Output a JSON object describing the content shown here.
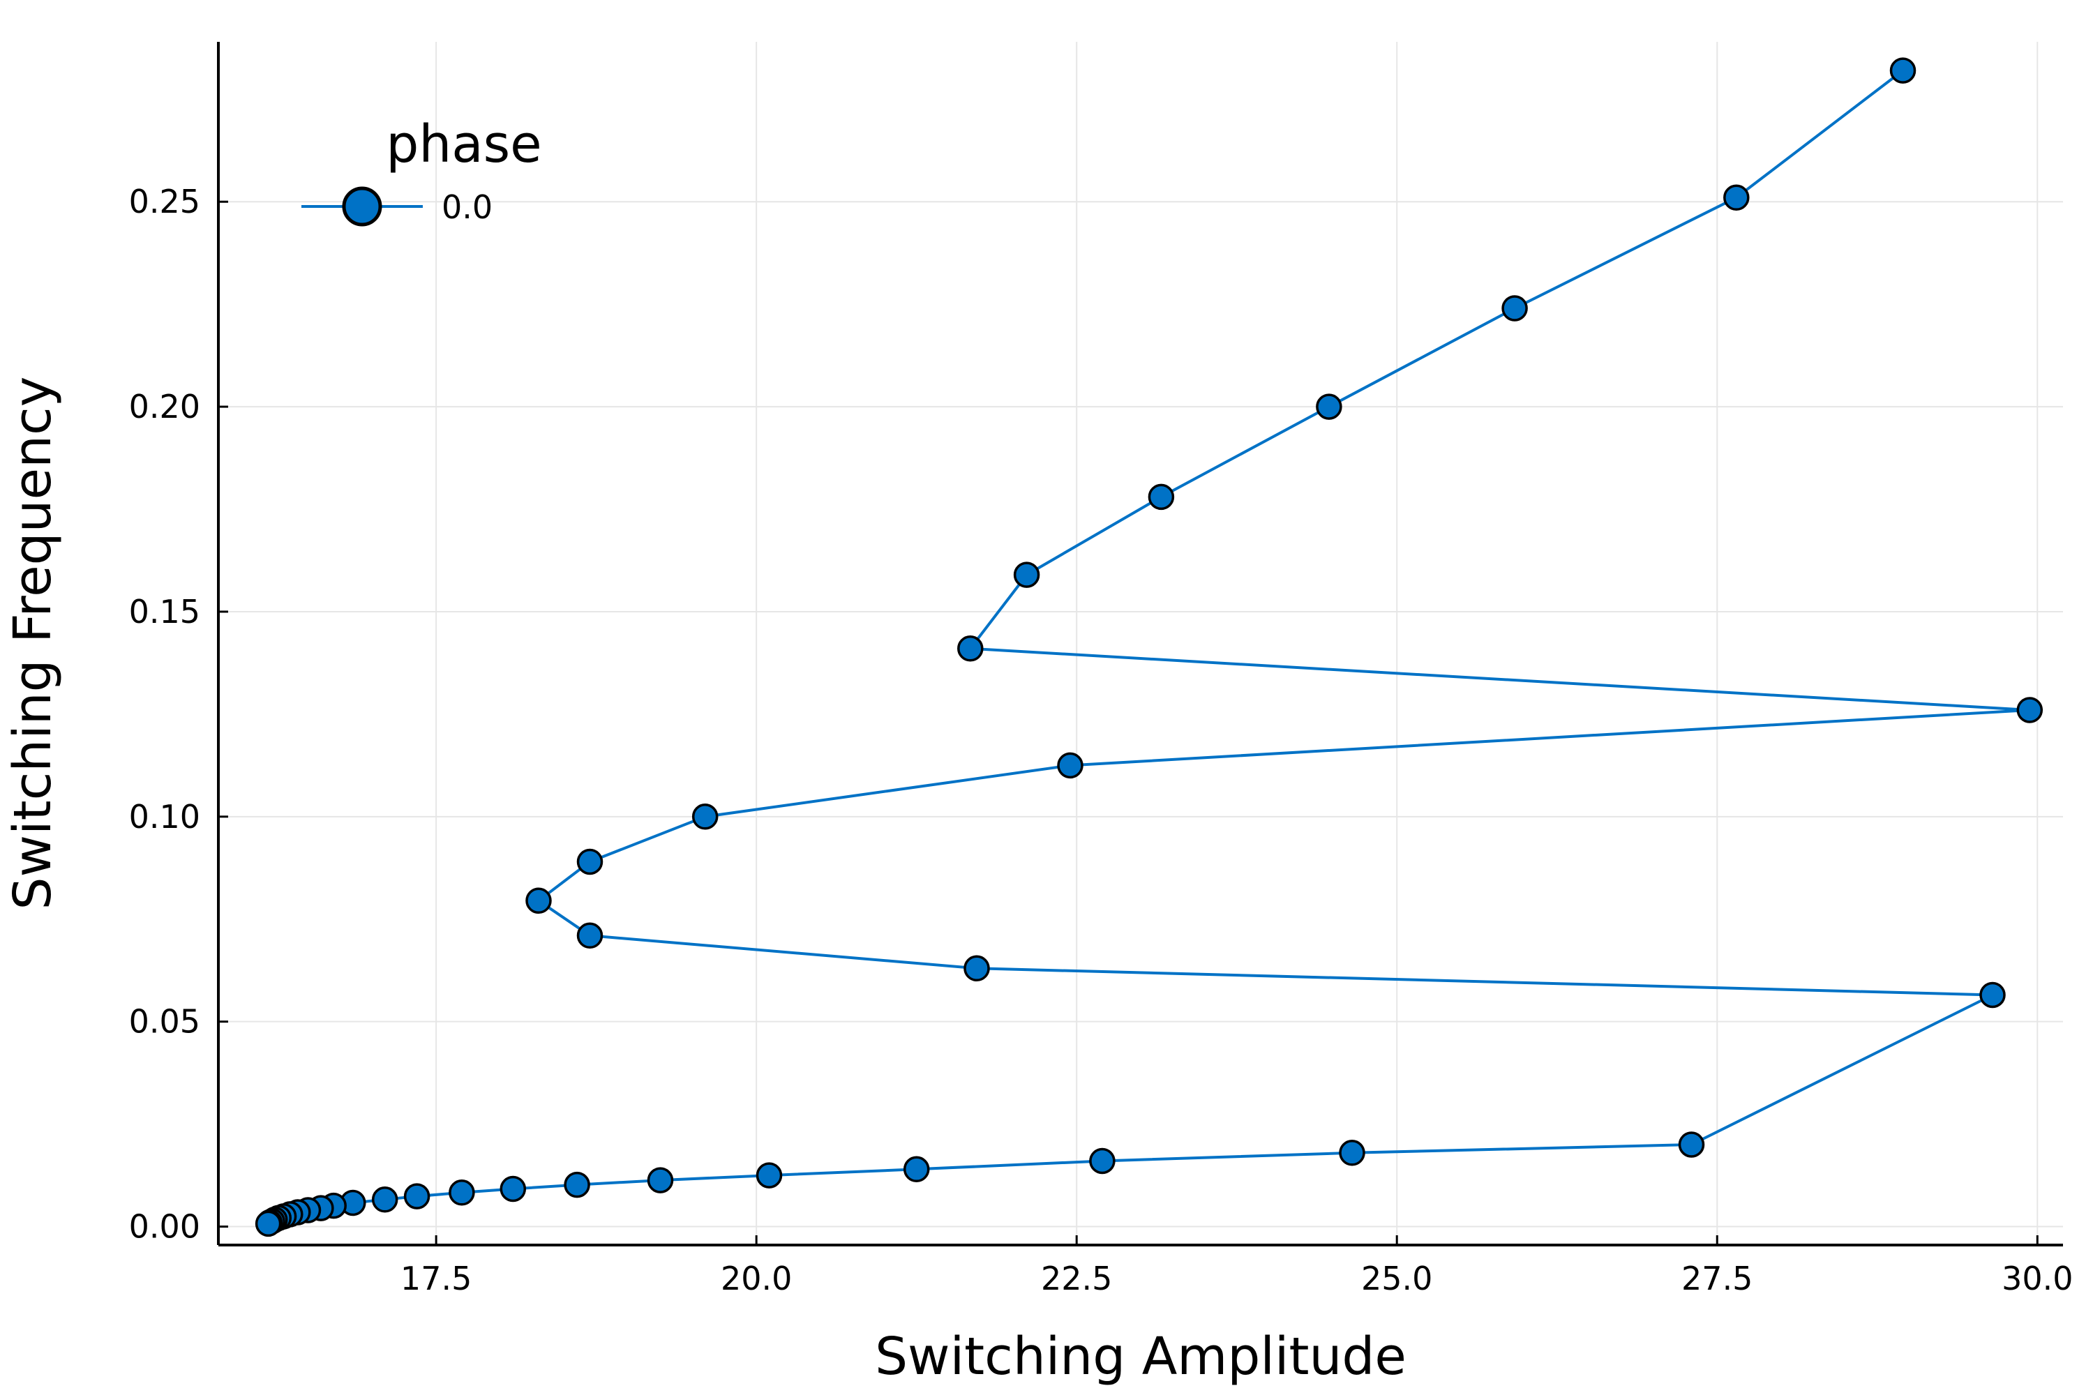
{
  "chart_data": {
    "type": "line",
    "xlabel": "Switching Amplitude",
    "ylabel": "Switching Frequency",
    "xlim": [
      15.8,
      30.2
    ],
    "ylim": [
      -0.0045,
      0.289
    ],
    "xticks": [
      17.5,
      20.0,
      22.5,
      25.0,
      27.5,
      30.0
    ],
    "yticks": [
      0.0,
      0.05,
      0.1,
      0.15,
      0.2,
      0.25
    ],
    "xtick_labels": [
      "17.5",
      "20.0",
      "22.5",
      "25.0",
      "27.5",
      "30.0"
    ],
    "ytick_labels": [
      "0.00",
      "0.05",
      "0.10",
      "0.15",
      "0.20",
      "0.25"
    ],
    "grid": true,
    "legend": {
      "title": "phase",
      "placement": "top-left"
    },
    "colors": {
      "series": "#0072c6",
      "marker_edge": "#000000",
      "grid": "#e6e6e6"
    },
    "series": [
      {
        "name": "0.0",
        "marker": "circle",
        "points": [
          [
            28.95,
            0.282
          ],
          [
            27.65,
            0.251
          ],
          [
            25.92,
            0.224
          ],
          [
            24.47,
            0.2
          ],
          [
            23.16,
            0.178
          ],
          [
            22.11,
            0.159
          ],
          [
            21.67,
            0.141
          ],
          [
            29.94,
            0.126
          ],
          [
            22.45,
            0.1125
          ],
          [
            19.6,
            0.1
          ],
          [
            18.7,
            0.089
          ],
          [
            18.3,
            0.0795
          ],
          [
            18.7,
            0.071
          ],
          [
            21.72,
            0.063
          ],
          [
            29.65,
            0.0565
          ],
          [
            27.3,
            0.02
          ],
          [
            24.65,
            0.018
          ],
          [
            22.7,
            0.016
          ],
          [
            21.25,
            0.014
          ],
          [
            20.1,
            0.0125
          ],
          [
            19.25,
            0.0113
          ],
          [
            18.6,
            0.0102
          ],
          [
            18.1,
            0.0092
          ],
          [
            17.7,
            0.0083
          ],
          [
            17.35,
            0.0074
          ],
          [
            17.1,
            0.0066
          ],
          [
            16.85,
            0.0058
          ],
          [
            16.7,
            0.0051
          ],
          [
            16.6,
            0.0045
          ],
          [
            16.5,
            0.004
          ],
          [
            16.42,
            0.0035
          ],
          [
            16.36,
            0.003
          ],
          [
            16.31,
            0.0025
          ],
          [
            16.27,
            0.0021
          ],
          [
            16.24,
            0.0017
          ],
          [
            16.22,
            0.0013
          ],
          [
            16.2,
            0.001
          ],
          [
            16.19,
            0.0007
          ]
        ]
      }
    ]
  }
}
